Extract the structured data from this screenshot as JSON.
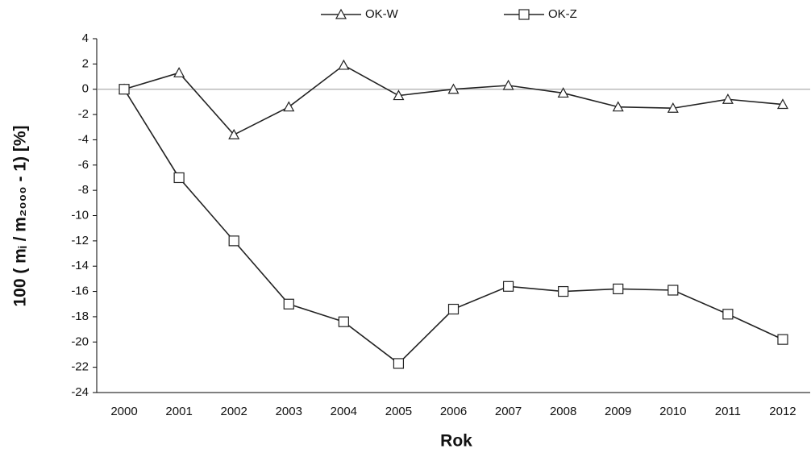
{
  "chart_data": {
    "type": "line",
    "x_label": "Rok",
    "y_label": "100 ( mᵢ / m₂₀₀₀ - 1)   [%]",
    "categories": [
      "2000",
      "2001",
      "2002",
      "2003",
      "2004",
      "2005",
      "2006",
      "2007",
      "2008",
      "2009",
      "2010",
      "2011",
      "2012"
    ],
    "series": [
      {
        "name": "OK-W",
        "color": "#222222",
        "marker": "triangle",
        "values": [
          0,
          1.3,
          -3.6,
          -1.4,
          1.9,
          -0.5,
          0,
          0.3,
          -0.3,
          -1.4,
          -1.5,
          -0.8,
          -1.2
        ]
      },
      {
        "name": "OK-Z",
        "color": "#222222",
        "marker": "square",
        "values": [
          0,
          -7,
          -12,
          -17,
          -18.4,
          -21.7,
          -17.4,
          -15.6,
          -16,
          -15.8,
          -15.9,
          -17.8,
          -19.8
        ]
      }
    ],
    "ylim": [
      -24,
      4
    ],
    "yticks": [
      -24,
      -22,
      -20,
      -18,
      -16,
      -14,
      -12,
      -10,
      -8,
      -6,
      -4,
      -2,
      0,
      2,
      4
    ],
    "grid": false,
    "legend": "top"
  }
}
